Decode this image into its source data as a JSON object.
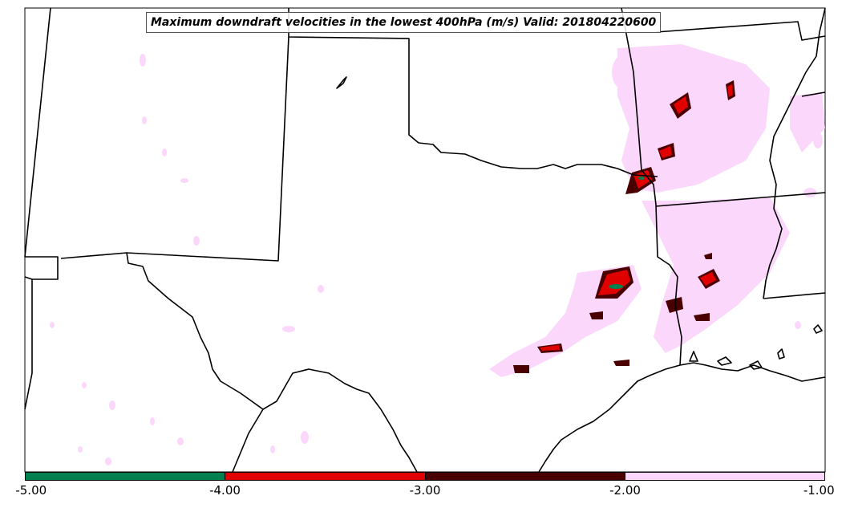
{
  "title": "Maximum downdraft velocities in the lowest 400hPa (m/s) Valid: 201804220600",
  "colorbar": {
    "bins": [
      {
        "from": -5.0,
        "to": -4.0,
        "color": "#00804f"
      },
      {
        "from": -4.0,
        "to": -3.0,
        "color": "#e00000"
      },
      {
        "from": -3.0,
        "to": -2.0,
        "color": "#4a0000"
      },
      {
        "from": -2.0,
        "to": -1.0,
        "color": "#fbd8fb"
      }
    ],
    "ticks": [
      "-5.00",
      "-4.00",
      "-3.00",
      "-2.00",
      "-1.00"
    ]
  },
  "colors": {
    "boundary": "#000000",
    "weak_downdraft": "#fbd8fb",
    "moderate_downdraft": "#4a0000",
    "strong_downdraft": "#e00000",
    "extreme_downdraft": "#00804f"
  }
}
